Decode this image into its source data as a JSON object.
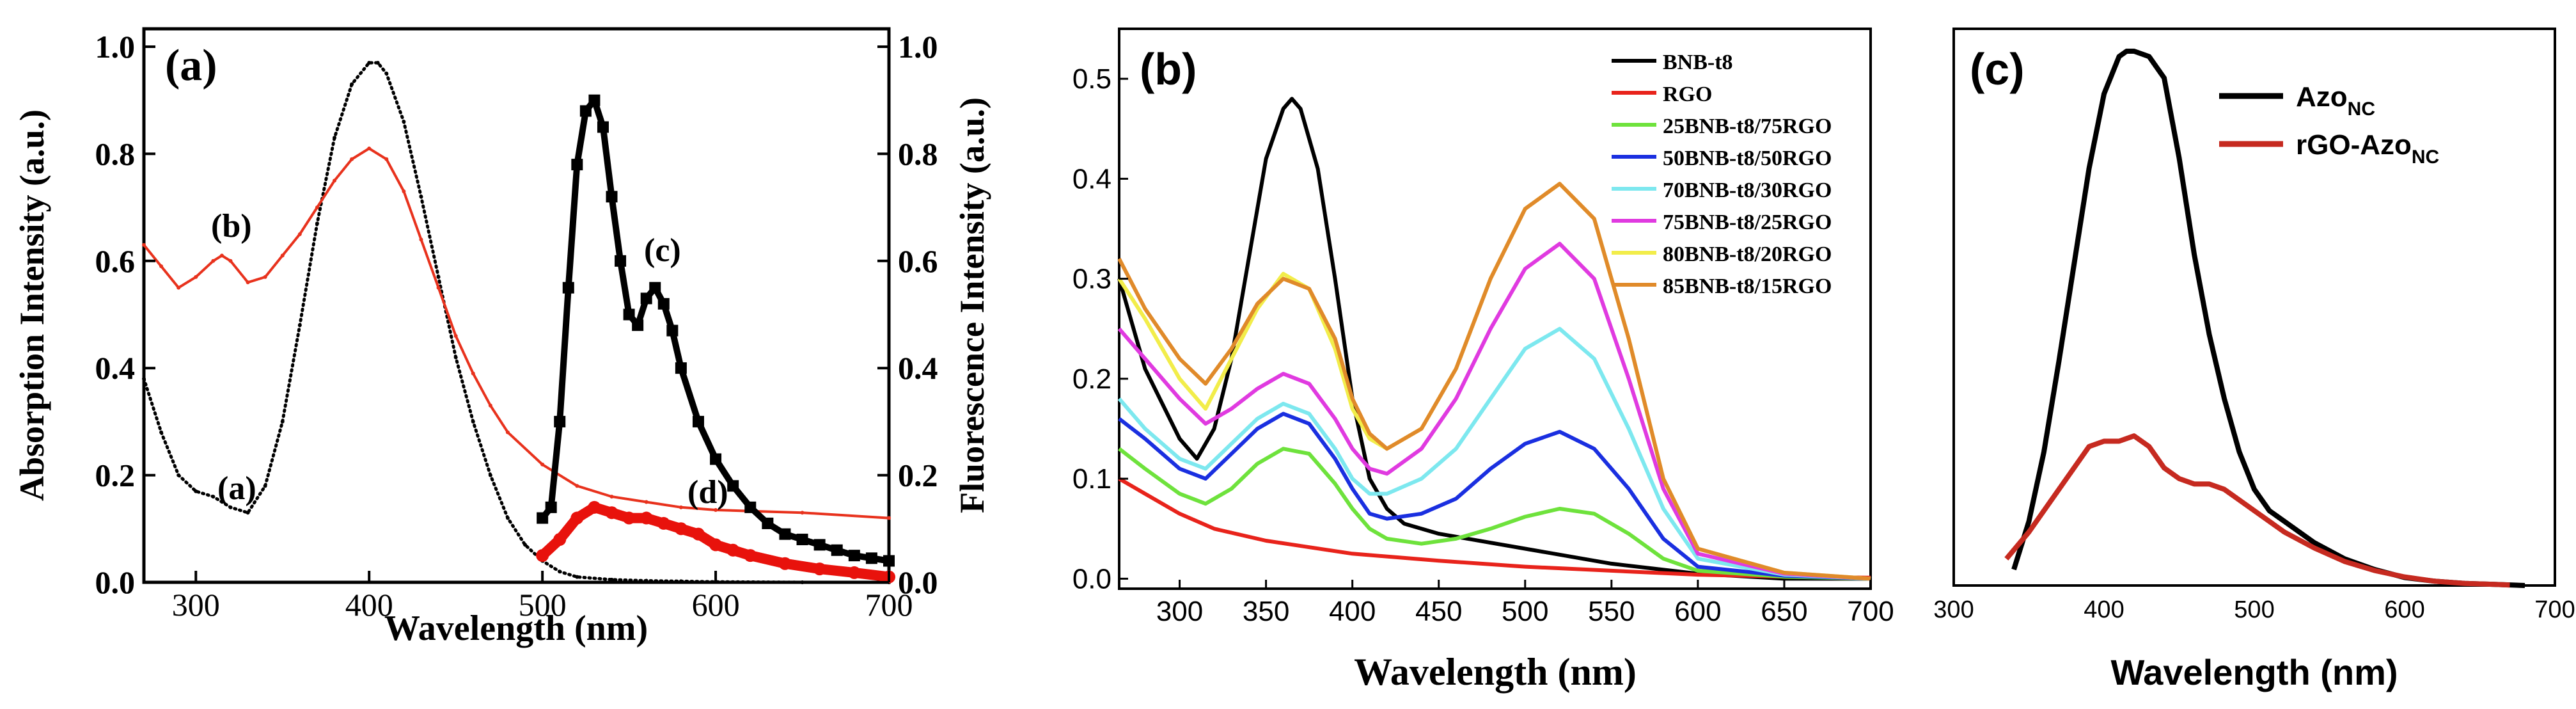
{
  "chart_data": [
    {
      "panel_label": "(a)",
      "type": "line",
      "title": "",
      "xlabel": "Wavelength (nm)",
      "ylabel": "Absorption Intensity (a.u.)",
      "y2label": "Fluorescence Intensity (a.u.)",
      "xlim": [
        270,
        700
      ],
      "ylim": [
        0,
        1.0
      ],
      "y2lim": [
        0,
        1.0
      ],
      "xticks": [
        300,
        400,
        500,
        600,
        700
      ],
      "yticks": [
        0.0,
        0.2,
        0.4,
        0.6,
        0.8,
        1.0
      ],
      "ytick_labels": [
        "0.0",
        "0.2",
        "0.4",
        "0.6",
        "0.8",
        "1.0"
      ],
      "series": [
        {
          "name": "(a)",
          "axis": "left",
          "color": "#000000",
          "style": "dotted",
          "x": [
            270,
            280,
            290,
            300,
            310,
            320,
            330,
            340,
            350,
            360,
            370,
            380,
            390,
            400,
            405,
            410,
            420,
            430,
            440,
            450,
            460,
            470,
            480,
            490,
            500,
            510,
            520,
            540,
            560,
            580,
            600,
            650,
            700
          ],
          "y": [
            0.38,
            0.28,
            0.2,
            0.17,
            0.16,
            0.14,
            0.13,
            0.18,
            0.3,
            0.48,
            0.67,
            0.83,
            0.93,
            0.97,
            0.97,
            0.95,
            0.86,
            0.72,
            0.57,
            0.42,
            0.3,
            0.2,
            0.12,
            0.07,
            0.04,
            0.02,
            0.01,
            0.005,
            0.003,
            0.002,
            0.001,
            0.0,
            0.0
          ]
        },
        {
          "name": "(b)",
          "axis": "left",
          "color": "#e8321d",
          "style": "solid",
          "x": [
            270,
            280,
            290,
            300,
            310,
            315,
            320,
            330,
            340,
            350,
            360,
            370,
            380,
            390,
            400,
            410,
            420,
            430,
            440,
            450,
            460,
            470,
            480,
            500,
            520,
            540,
            560,
            580,
            600,
            650,
            700
          ],
          "y": [
            0.63,
            0.59,
            0.55,
            0.57,
            0.6,
            0.61,
            0.6,
            0.56,
            0.57,
            0.61,
            0.65,
            0.7,
            0.75,
            0.79,
            0.81,
            0.79,
            0.73,
            0.64,
            0.55,
            0.46,
            0.39,
            0.33,
            0.28,
            0.22,
            0.18,
            0.16,
            0.15,
            0.14,
            0.135,
            0.13,
            0.12
          ]
        },
        {
          "name": "(c)",
          "axis": "right",
          "color": "#000000",
          "style": "square-markers",
          "x": [
            500,
            505,
            510,
            515,
            520,
            525,
            530,
            535,
            540,
            545,
            550,
            555,
            560,
            565,
            570,
            575,
            580,
            590,
            600,
            610,
            620,
            630,
            640,
            650,
            660,
            670,
            680,
            690,
            700
          ],
          "y": [
            0.12,
            0.14,
            0.3,
            0.55,
            0.78,
            0.88,
            0.9,
            0.85,
            0.72,
            0.6,
            0.5,
            0.48,
            0.53,
            0.55,
            0.52,
            0.47,
            0.4,
            0.3,
            0.23,
            0.18,
            0.14,
            0.11,
            0.09,
            0.08,
            0.07,
            0.06,
            0.05,
            0.045,
            0.04
          ]
        },
        {
          "name": "(d)",
          "axis": "right",
          "color": "#e8120c",
          "style": "thick-markers",
          "x": [
            500,
            510,
            520,
            530,
            540,
            550,
            560,
            570,
            580,
            590,
            600,
            610,
            620,
            640,
            660,
            680,
            700
          ],
          "y": [
            0.05,
            0.08,
            0.12,
            0.14,
            0.13,
            0.12,
            0.12,
            0.11,
            0.1,
            0.09,
            0.07,
            0.06,
            0.05,
            0.035,
            0.025,
            0.018,
            0.01
          ]
        }
      ],
      "annotations": [
        "(a)",
        "(b)",
        "(c)",
        "(d)"
      ]
    },
    {
      "panel_label": "(b)",
      "type": "line",
      "title": "",
      "xlabel": "Wavelength (nm)",
      "ylabel": "",
      "xlim": [
        265,
        700
      ],
      "ylim": [
        -0.01,
        0.55
      ],
      "xticks": [
        300,
        350,
        400,
        450,
        500,
        550,
        600,
        650,
        700
      ],
      "yticks": [
        0.0,
        0.1,
        0.2,
        0.3,
        0.4,
        0.5
      ],
      "ytick_labels": [
        "0.0",
        "0.1",
        "0.2",
        "0.3",
        "0.4",
        "0.5"
      ],
      "legend": "top-right",
      "series": [
        {
          "name": "BNB-t8",
          "color": "#000000",
          "x": [
            265,
            280,
            300,
            310,
            320,
            330,
            340,
            350,
            360,
            365,
            370,
            380,
            390,
            400,
            410,
            420,
            430,
            450,
            500,
            550,
            600,
            650,
            700
          ],
          "y": [
            0.3,
            0.21,
            0.14,
            0.12,
            0.15,
            0.22,
            0.32,
            0.42,
            0.47,
            0.48,
            0.47,
            0.41,
            0.3,
            0.18,
            0.1,
            0.07,
            0.055,
            0.045,
            0.03,
            0.015,
            0.005,
            0.0,
            0.0
          ]
        },
        {
          "name": "RGO",
          "color": "#e8231b",
          "x": [
            265,
            280,
            300,
            320,
            350,
            400,
            450,
            500,
            550,
            600,
            650,
            700
          ],
          "y": [
            0.1,
            0.085,
            0.065,
            0.05,
            0.038,
            0.025,
            0.018,
            0.012,
            0.008,
            0.004,
            0.002,
            0.001
          ]
        },
        {
          "name": "25BNB-t8/75RGO",
          "color": "#6ee23c",
          "x": [
            265,
            280,
            300,
            315,
            330,
            345,
            360,
            375,
            390,
            400,
            410,
            420,
            440,
            460,
            480,
            500,
            520,
            540,
            560,
            580,
            600,
            650,
            700
          ],
          "y": [
            0.13,
            0.11,
            0.085,
            0.075,
            0.09,
            0.115,
            0.13,
            0.125,
            0.095,
            0.07,
            0.05,
            0.04,
            0.035,
            0.04,
            0.05,
            0.062,
            0.07,
            0.065,
            0.045,
            0.02,
            0.008,
            0.002,
            0.0
          ]
        },
        {
          "name": "50BNB-t8/50RGO",
          "color": "#1a2fe0",
          "x": [
            265,
            280,
            300,
            315,
            330,
            345,
            360,
            375,
            390,
            400,
            410,
            420,
            440,
            460,
            480,
            500,
            520,
            540,
            560,
            580,
            600,
            650,
            700
          ],
          "y": [
            0.16,
            0.14,
            0.11,
            0.1,
            0.125,
            0.15,
            0.165,
            0.155,
            0.12,
            0.09,
            0.065,
            0.06,
            0.065,
            0.08,
            0.11,
            0.135,
            0.147,
            0.13,
            0.09,
            0.04,
            0.012,
            0.003,
            0.0
          ]
        },
        {
          "name": "70BNB-t8/30RGO",
          "color": "#7de8ef",
          "x": [
            265,
            280,
            300,
            315,
            330,
            345,
            360,
            375,
            390,
            400,
            410,
            420,
            440,
            460,
            480,
            500,
            520,
            540,
            560,
            580,
            600,
            650,
            700
          ],
          "y": [
            0.18,
            0.15,
            0.12,
            0.11,
            0.135,
            0.16,
            0.175,
            0.165,
            0.13,
            0.1,
            0.085,
            0.085,
            0.1,
            0.13,
            0.18,
            0.23,
            0.25,
            0.22,
            0.15,
            0.07,
            0.02,
            0.004,
            0.0
          ]
        },
        {
          "name": "75BNB-t8/25RGO",
          "color": "#e03ae0",
          "x": [
            265,
            280,
            300,
            315,
            330,
            345,
            360,
            375,
            390,
            400,
            410,
            420,
            440,
            460,
            480,
            500,
            520,
            540,
            560,
            580,
            600,
            650,
            700
          ],
          "y": [
            0.25,
            0.22,
            0.18,
            0.155,
            0.17,
            0.19,
            0.205,
            0.195,
            0.16,
            0.13,
            0.11,
            0.105,
            0.13,
            0.18,
            0.25,
            0.31,
            0.335,
            0.3,
            0.2,
            0.09,
            0.025,
            0.005,
            0.0
          ]
        },
        {
          "name": "80BNB-t8/20RGO",
          "color": "#f2ed4a",
          "x": [
            265,
            280,
            300,
            315,
            330,
            345,
            360,
            375,
            390,
            400,
            410,
            420,
            440,
            460,
            480,
            500,
            520,
            540,
            560,
            580,
            600,
            650,
            700
          ],
          "y": [
            0.3,
            0.26,
            0.2,
            0.17,
            0.22,
            0.27,
            0.305,
            0.29,
            0.23,
            0.17,
            0.14,
            0.13,
            0.15,
            0.21,
            0.3,
            0.37,
            0.395,
            0.36,
            0.24,
            0.1,
            0.03,
            0.006,
            0.0
          ]
        },
        {
          "name": "85BNB-t8/15RGO",
          "color": "#e08a2a",
          "x": [
            265,
            280,
            300,
            315,
            330,
            345,
            360,
            375,
            390,
            400,
            410,
            420,
            440,
            460,
            480,
            500,
            520,
            540,
            560,
            580,
            600,
            650,
            700
          ],
          "y": [
            0.32,
            0.27,
            0.22,
            0.195,
            0.23,
            0.275,
            0.3,
            0.29,
            0.24,
            0.18,
            0.145,
            0.13,
            0.15,
            0.21,
            0.3,
            0.37,
            0.395,
            0.36,
            0.24,
            0.1,
            0.03,
            0.006,
            0.0
          ]
        }
      ]
    },
    {
      "panel_label": "(c)",
      "type": "line",
      "title": "",
      "xlabel": "Wavelength (nm)",
      "ylabel": "",
      "xlim": [
        300,
        700
      ],
      "ylim": [
        0,
        1.0
      ],
      "xticks": [
        300,
        400,
        500,
        600,
        700
      ],
      "legend": "top-right",
      "series": [
        {
          "name": "Azo",
          "subscript": "NC",
          "color": "#000000",
          "x": [
            340,
            350,
            360,
            370,
            380,
            390,
            400,
            410,
            415,
            420,
            430,
            440,
            450,
            460,
            470,
            480,
            490,
            500,
            510,
            520,
            530,
            540,
            560,
            580,
            600,
            620,
            640,
            660,
            680
          ],
          "y": [
            0.03,
            0.12,
            0.25,
            0.42,
            0.6,
            0.78,
            0.92,
            0.99,
            1.0,
            1.0,
            0.99,
            0.95,
            0.8,
            0.62,
            0.47,
            0.35,
            0.25,
            0.18,
            0.14,
            0.12,
            0.1,
            0.08,
            0.05,
            0.03,
            0.015,
            0.008,
            0.004,
            0.002,
            0.0
          ]
        },
        {
          "name": "rGO-Azo",
          "subscript": "NC",
          "color": "#c62a20",
          "x": [
            335,
            350,
            360,
            370,
            380,
            390,
            400,
            410,
            420,
            430,
            440,
            450,
            460,
            470,
            480,
            490,
            500,
            520,
            540,
            560,
            580,
            600,
            620,
            640,
            660,
            670
          ],
          "y": [
            0.05,
            0.1,
            0.14,
            0.18,
            0.22,
            0.26,
            0.27,
            0.27,
            0.28,
            0.26,
            0.22,
            0.2,
            0.19,
            0.19,
            0.18,
            0.16,
            0.14,
            0.1,
            0.07,
            0.045,
            0.028,
            0.016,
            0.008,
            0.004,
            0.002,
            0.001
          ]
        }
      ]
    }
  ]
}
